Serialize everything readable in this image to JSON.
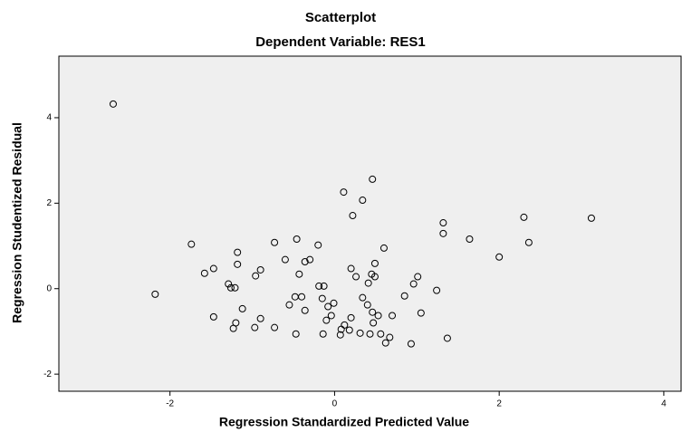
{
  "chart_data": {
    "type": "scatter",
    "title": "Scatterplot",
    "subtitle": "Dependent Variable: RES1",
    "x_label": "Regression Standardized Predicted Value",
    "y_label": "Regression Studentized Residual",
    "color": "#000000",
    "xlim": [
      -3.35,
      4.21
    ],
    "ylim": [
      -2.4,
      5.44
    ],
    "xticks": [
      -2,
      0,
      2,
      4
    ],
    "yticks": [
      -2,
      0,
      2,
      4
    ],
    "grid": false,
    "x": [
      -2.69,
      -2.18,
      -1.74,
      -1.58,
      -1.47,
      -1.47,
      -1.29,
      -1.23,
      -1.2,
      -1.18,
      -1.18,
      -1.21,
      -1.12,
      -1.26,
      -0.97,
      -0.96,
      -0.9,
      -0.9,
      -0.73,
      -0.73,
      -0.6,
      -0.55,
      -0.48,
      -0.47,
      -0.46,
      -0.43,
      -0.4,
      -0.36,
      -0.36,
      -0.3,
      -0.2,
      -0.19,
      -0.15,
      -0.14,
      -0.13,
      -0.1,
      -0.08,
      -0.04,
      -0.01,
      0.07,
      0.08,
      0.11,
      0.12,
      0.18,
      0.2,
      0.2,
      0.22,
      0.26,
      0.31,
      0.34,
      0.34,
      0.4,
      0.41,
      0.43,
      0.46,
      0.45,
      0.46,
      0.47,
      0.49,
      0.49,
      0.53,
      0.56,
      0.6,
      0.62,
      0.67,
      0.7,
      0.85,
      0.93,
      0.96,
      1.01,
      1.05,
      1.24,
      1.32,
      1.32,
      1.37,
      1.64,
      2.0,
      2.3,
      2.36,
      3.12
    ],
    "values": [
      4.32,
      -0.13,
      1.04,
      0.36,
      0.47,
      -0.66,
      0.11,
      -0.93,
      -0.8,
      0.57,
      0.85,
      0.02,
      -0.47,
      0.02,
      -0.91,
      0.3,
      0.44,
      -0.7,
      1.08,
      -0.91,
      0.68,
      -0.38,
      -0.19,
      -1.06,
      1.16,
      0.34,
      -0.19,
      0.63,
      -0.51,
      0.68,
      1.02,
      0.06,
      -0.23,
      -1.06,
      0.06,
      -0.74,
      -0.42,
      -0.63,
      -0.34,
      -1.08,
      -0.95,
      2.26,
      -0.85,
      -0.97,
      -0.68,
      0.47,
      1.71,
      0.28,
      -1.04,
      2.07,
      -0.21,
      -0.38,
      0.13,
      -1.06,
      2.56,
      0.34,
      -0.55,
      -0.8,
      0.59,
      0.28,
      -0.63,
      -1.06,
      0.95,
      -1.27,
      -1.14,
      -0.63,
      -0.17,
      -1.29,
      0.11,
      0.28,
      -0.57,
      -0.04,
      1.54,
      1.29,
      -1.16,
      1.16,
      0.74,
      1.67,
      1.08,
      1.65
    ]
  }
}
